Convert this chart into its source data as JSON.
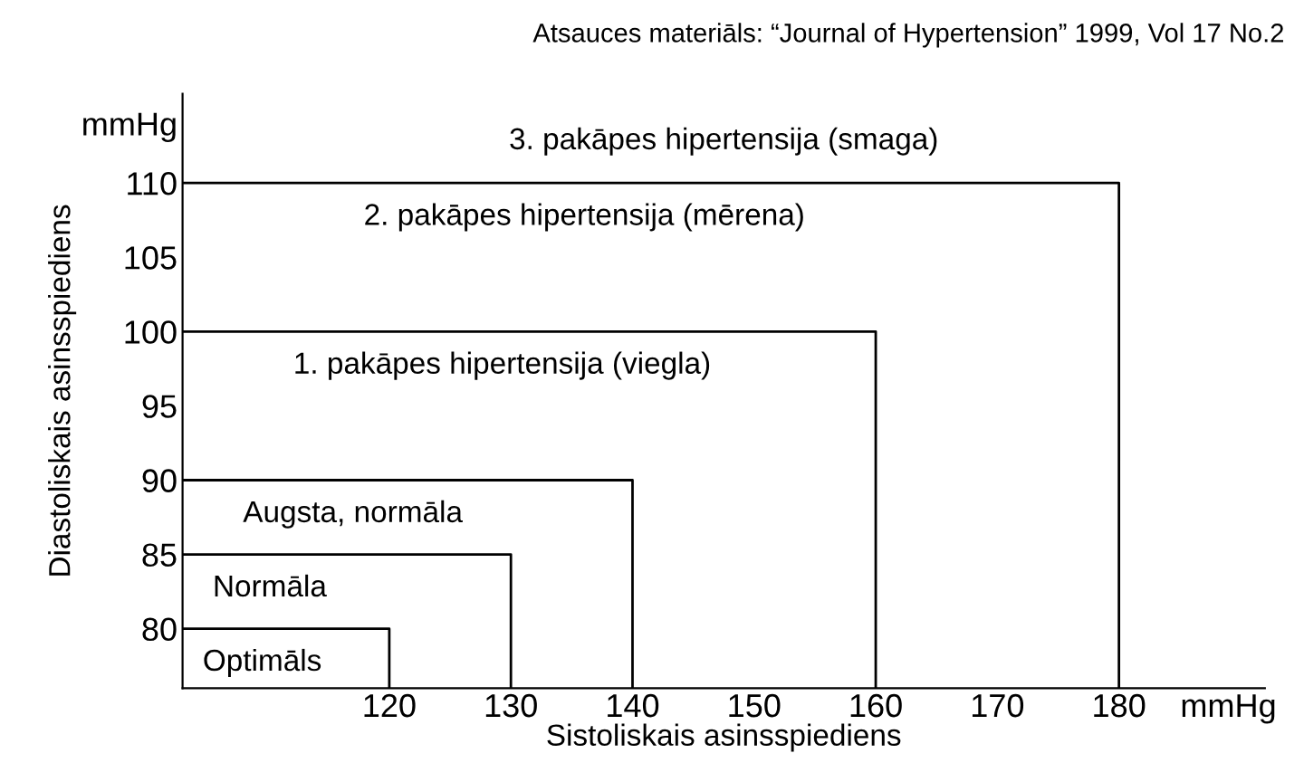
{
  "chart_data": {
    "type": "line",
    "xlabel": "Sistoliskais asinsspiediens",
    "ylabel": "Diastoliskais asinsspiediens",
    "xlim": [
      103,
      192
    ],
    "ylim": [
      76,
      116
    ],
    "xticks": [
      120,
      130,
      140,
      150,
      160,
      170,
      180,
      {
        "value": 189,
        "label": "mmHg"
      }
    ],
    "yticks": [
      80,
      85,
      90,
      95,
      100,
      105,
      110,
      {
        "value": 114,
        "label": "mmHg"
      }
    ],
    "grid": false,
    "legend": false,
    "marker": "none",
    "line_style": "solid",
    "series": [
      {
        "name": "Optimāls",
        "color": "#000000",
        "x": [
          103,
          120,
          120
        ],
        "values": [
          80,
          80,
          76
        ]
      },
      {
        "name": "Normāla",
        "color": "#000000",
        "x": [
          103,
          130,
          130
        ],
        "values": [
          85,
          85,
          76
        ]
      },
      {
        "name": "Augsta, normāla",
        "color": "#000000",
        "x": [
          103,
          140,
          140
        ],
        "values": [
          90,
          90,
          76
        ]
      },
      {
        "name": "1. pakāpes hipertensija (viegla)",
        "color": "#000000",
        "x": [
          103,
          160,
          160
        ],
        "values": [
          100,
          100,
          76
        ]
      },
      {
        "name": "2. pakāpes hipertensija (mērena)",
        "color": "#000000",
        "x": [
          103,
          180,
          180
        ],
        "values": [
          110,
          110,
          76
        ]
      }
    ],
    "annotations": [
      "Atsauces materiāls: “Journal of Hypertension” 1999, Vol 17 No.2",
      "3. pakāpes hipertensija (smaga)"
    ]
  }
}
